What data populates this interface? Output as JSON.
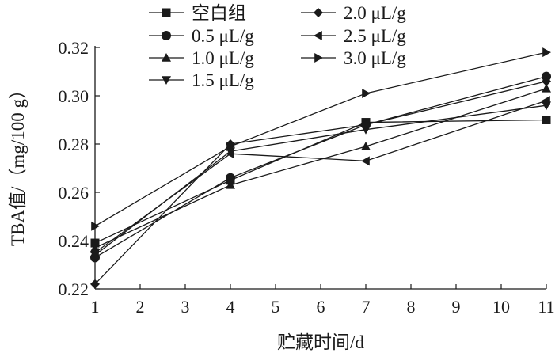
{
  "chart_data": {
    "type": "line",
    "title": "",
    "xlabel": "贮藏时间/d",
    "ylabel": "TBA值/（mg/100 g）",
    "x": [
      1,
      4,
      7,
      11
    ],
    "xticks": [
      "1",
      "2",
      "3",
      "4",
      "5",
      "6",
      "7",
      "8",
      "9",
      "10",
      "11"
    ],
    "yticks": [
      "0.22",
      "0.24",
      "0.26",
      "0.28",
      "0.30",
      "0.32"
    ],
    "xlim": [
      1,
      11
    ],
    "ylim": [
      0.22,
      0.32
    ],
    "grid": false,
    "legend_position": "top",
    "series": [
      {
        "name": "空白组",
        "marker": "square",
        "values": [
          0.239,
          0.265,
          0.289,
          0.29
        ]
      },
      {
        "name": "0.5 μL/g",
        "marker": "circle",
        "values": [
          0.233,
          0.266,
          0.288,
          0.308
        ]
      },
      {
        "name": "1.0 μL/g",
        "marker": "triangle-up",
        "values": [
          0.237,
          0.263,
          0.279,
          0.303
        ]
      },
      {
        "name": "1.5 μL/g",
        "marker": "triangle-down",
        "values": [
          0.234,
          0.277,
          0.286,
          0.296
        ]
      },
      {
        "name": "2.0 μL/g",
        "marker": "diamond",
        "values": [
          0.222,
          0.28,
          0.288,
          0.306
        ]
      },
      {
        "name": "2.5 μL/g",
        "marker": "triangle-left",
        "values": [
          0.235,
          0.276,
          0.273,
          0.298
        ]
      },
      {
        "name": "3.0 μL/g",
        "marker": "triangle-right",
        "values": [
          0.246,
          0.279,
          0.301,
          0.318
        ]
      }
    ]
  }
}
